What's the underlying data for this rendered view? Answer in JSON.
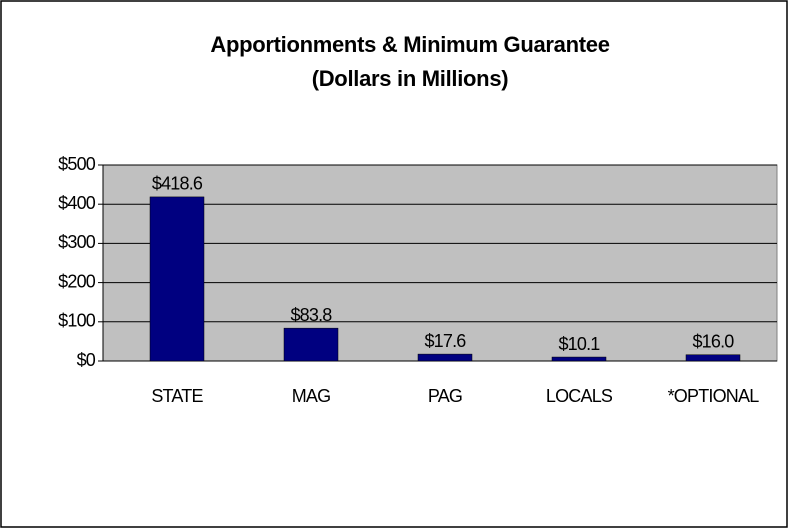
{
  "chart_data": {
    "type": "bar",
    "title": "Apportionments & Minimum Guarantee",
    "subtitle": "(Dollars in Millions)",
    "categories": [
      "STATE",
      "MAG",
      "PAG",
      "LOCALS",
      "*OPTIONAL"
    ],
    "values": [
      418.6,
      83.8,
      17.6,
      10.1,
      16.0
    ],
    "value_labels": [
      "$418.6",
      "$83.8",
      "$17.6",
      "$10.1",
      "$16.0"
    ],
    "color": "#000080",
    "ylim": [
      0,
      500
    ],
    "yticks": [
      {
        "value": 0,
        "label": "$0"
      },
      {
        "value": 100,
        "label": "$100"
      },
      {
        "value": 200,
        "label": "$200"
      },
      {
        "value": 300,
        "label": "$300"
      },
      {
        "value": 400,
        "label": "$400"
      },
      {
        "value": 500,
        "label": "$500"
      }
    ],
    "grid": true
  }
}
